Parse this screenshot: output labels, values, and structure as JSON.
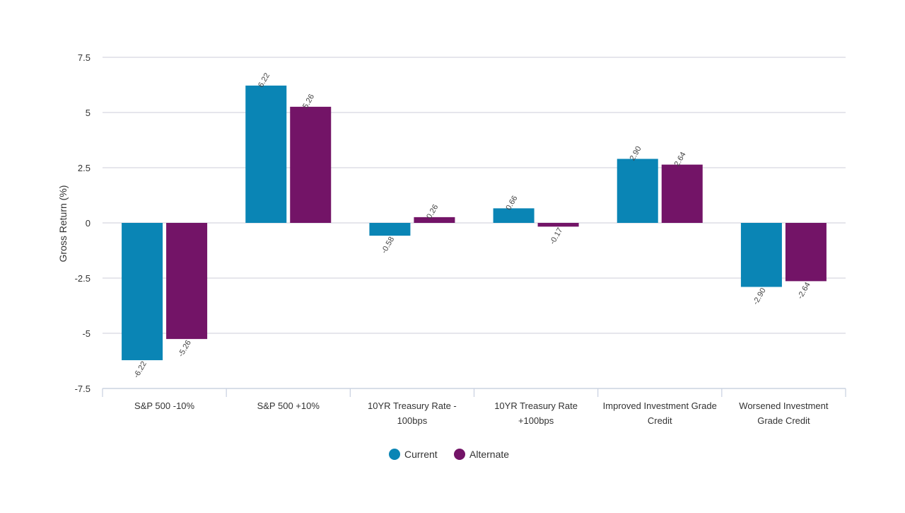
{
  "chart_data": {
    "type": "bar",
    "title": "",
    "xlabel": "",
    "ylabel": "Gross Return (%)",
    "ylim": [
      -7.5,
      7.5
    ],
    "yticks": [
      7.5,
      5,
      2.5,
      0,
      -2.5,
      -5,
      -7.5
    ],
    "ytick_labels": [
      "7.5",
      "5",
      "2.5",
      "0",
      "-2.5",
      "-5",
      "-7.5"
    ],
    "grid": true,
    "legend_position": "bottom-center",
    "categories": [
      [
        "S&P 500 -10%"
      ],
      [
        "S&P 500 +10%"
      ],
      [
        "10YR Treasury Rate -",
        "100bps"
      ],
      [
        "10YR Treasury Rate",
        "+100bps"
      ],
      [
        "Improved Investment Grade",
        "Credit"
      ],
      [
        "Worsened Investment",
        "Grade Credit"
      ]
    ],
    "series": [
      {
        "name": "Current",
        "color": "#0a85b5",
        "values": [
          -6.22,
          6.22,
          -0.58,
          0.66,
          2.9,
          -2.9
        ],
        "labels": [
          "-6.22",
          "6.22",
          "-0.58",
          "0.66",
          "2.90",
          "-2.90"
        ]
      },
      {
        "name": "Alternate",
        "color": "#731467",
        "values": [
          -5.26,
          5.26,
          0.26,
          -0.17,
          2.64,
          -2.64
        ],
        "labels": [
          "-5.26",
          "5.26",
          "0.26",
          "-0.17",
          "2.64",
          "-2.64"
        ]
      }
    ]
  }
}
